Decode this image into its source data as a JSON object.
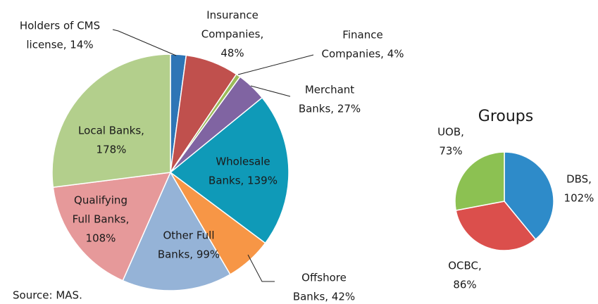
{
  "chart_data": [
    {
      "type": "pie",
      "categories": [
        "Holders of CMS license",
        "Insurance Companies",
        "Finance Companies",
        "Merchant Banks",
        "Wholesale Banks",
        "Offshore Banks",
        "Other Full Banks",
        "Qualifying Full Banks",
        "Local Banks"
      ],
      "values": [
        14,
        48,
        4,
        27,
        139,
        42,
        99,
        108,
        178
      ],
      "label_lines": [
        [
          "Holders of CMS",
          "license, 14%"
        ],
        [
          "Insurance",
          "Companies,",
          "48%"
        ],
        [
          "Finance",
          "Companies, 4%"
        ],
        [
          "Merchant",
          "Banks, 27%"
        ],
        [
          "Wholesale",
          "Banks, 139%"
        ],
        [
          "Offshore",
          "Banks, 42%"
        ],
        [
          "Other  Full",
          "Banks, 99%"
        ],
        [
          "Qualifying",
          "Full Banks,",
          "108%"
        ],
        [
          "Local Banks,",
          "178%"
        ]
      ],
      "colors": [
        "#2e75b6",
        "#c0504d",
        "#9bbb59",
        "#8064a2",
        "#0f9ab8",
        "#f79646",
        "#95b3d7",
        "#e6999a",
        "#b3cf8c"
      ],
      "note": "Source: MAS."
    },
    {
      "type": "pie",
      "title": "Groups",
      "categories": [
        "DBS",
        "OCBC",
        "UOB"
      ],
      "values": [
        102,
        86,
        73
      ],
      "label_lines": [
        [
          "DBS,",
          "102%"
        ],
        [
          "OCBC,",
          "86%"
        ],
        [
          "UOB,",
          "73%"
        ]
      ],
      "colors": [
        "#2e8bc9",
        "#db4f4c",
        "#8cc152"
      ]
    }
  ]
}
